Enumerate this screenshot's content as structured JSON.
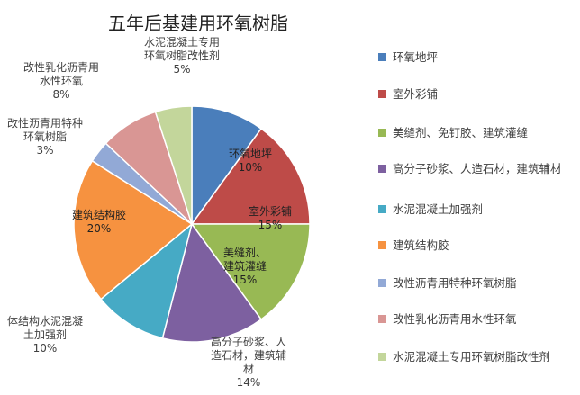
{
  "chart_data": {
    "type": "pie",
    "title": "五年后基建用环氧树脂",
    "legend_position": "right",
    "slices": [
      {
        "legend": "环氧地坪",
        "label": "环氧地坪",
        "value": 10,
        "pct": "10%",
        "color": "#4a7ebb"
      },
      {
        "legend": "室外彩铺",
        "label": "室外彩铺",
        "value": 15,
        "pct": "15%",
        "color": "#be4b48"
      },
      {
        "legend": "美缝剂、免钉胶、建筑灌缝",
        "label": "美缝剂、\n建筑灌缝",
        "value": 15,
        "pct": "15%",
        "color": "#98b954"
      },
      {
        "legend": "高分子砂浆、人造石材，建筑辅材",
        "label": "高分子砂浆、人\n造石材，建筑辅\n材",
        "value": 14,
        "pct": "14%",
        "color": "#7d60a0"
      },
      {
        "legend": "水泥混凝土加强剂",
        "label": "体结构水泥混凝\n土加强剂",
        "value": 10,
        "pct": "10%",
        "color": "#46aac5"
      },
      {
        "legend": "建筑结构胶",
        "label": "建筑结构胶",
        "value": 20,
        "pct": "20%",
        "color": "#f69240"
      },
      {
        "legend": "改性沥青用特种环氧树脂",
        "label": "改性沥青用特种\n环氧树脂",
        "value": 3,
        "pct": "3%",
        "color": "#92a9d6"
      },
      {
        "legend": "改性乳化沥青用水性环氧",
        "label": "改性乳化沥青用\n水性环氧",
        "value": 8,
        "pct": "8%",
        "color": "#d99694"
      },
      {
        "legend": "水泥混凝土专用环氧树脂改性剂",
        "label": "水泥混凝土专用\n环氧树脂改性剂",
        "value": 5,
        "pct": "5%",
        "color": "#c3d69b"
      }
    ]
  }
}
